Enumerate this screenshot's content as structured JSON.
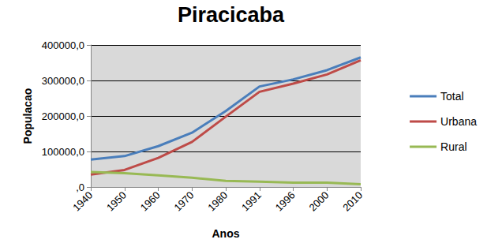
{
  "chart_data": {
    "type": "line",
    "title": "Piracicaba",
    "x_label": "Anos",
    "y_label": "Populacao",
    "categories": [
      "1940",
      "1950",
      "1960",
      "1970",
      "1980",
      "1991",
      "1996",
      "2000",
      "2010"
    ],
    "series": [
      {
        "name": "Total",
        "color": "#4a7ebb",
        "values": [
          77000,
          87000,
          115000,
          153000,
          214000,
          283000,
          303000,
          329000,
          365000
        ]
      },
      {
        "name": "Urbana",
        "color": "#be4b48",
        "values": [
          35000,
          48000,
          82000,
          127000,
          198000,
          268000,
          291000,
          317000,
          357000
        ]
      },
      {
        "name": "Rural",
        "color": "#98b954",
        "values": [
          42000,
          39000,
          33000,
          26000,
          17000,
          15000,
          12000,
          12000,
          8000
        ]
      }
    ],
    "ylim": [
      0,
      400000
    ],
    "yticks": [
      {
        "value": 0,
        "label": ",0"
      },
      {
        "value": 100000,
        "label": "100000,0"
      },
      {
        "value": 200000,
        "label": "200000,0"
      },
      {
        "value": 300000,
        "label": "300000,0"
      },
      {
        "value": 400000,
        "label": "400000,0"
      }
    ],
    "grid": true,
    "legend": "right"
  }
}
